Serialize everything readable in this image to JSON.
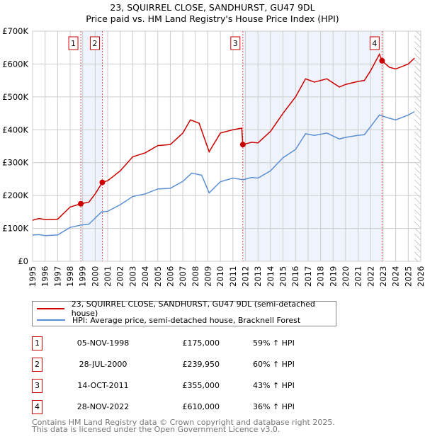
{
  "chart_data": {
    "type": "line",
    "title": "23, SQUIRREL CLOSE, SANDHURST, GU47 9DL",
    "subtitle": "Price paid vs. HM Land Registry's House Price Index (HPI)",
    "xlim": [
      1995,
      2026
    ],
    "ylim": [
      0,
      700000
    ],
    "x_ticks": [
      "1995",
      "1996",
      "1997",
      "1998",
      "1999",
      "2000",
      "2001",
      "2002",
      "2003",
      "2004",
      "2005",
      "2006",
      "2007",
      "2008",
      "2009",
      "2010",
      "2011",
      "2012",
      "2013",
      "2014",
      "2015",
      "2016",
      "2017",
      "2018",
      "2019",
      "2020",
      "2021",
      "2022",
      "2023",
      "2024",
      "2025",
      "2026"
    ],
    "y_ticks": [
      {
        "v": 0,
        "label": "£0"
      },
      {
        "v": 100000,
        "label": "£100K"
      },
      {
        "v": 200000,
        "label": "£200K"
      },
      {
        "v": 300000,
        "label": "£300K"
      },
      {
        "v": 400000,
        "label": "£400K"
      },
      {
        "v": 500000,
        "label": "£500K"
      },
      {
        "v": 600000,
        "label": "£600K"
      },
      {
        "v": 700000,
        "label": "£700K"
      }
    ],
    "grid": true,
    "data_end": 2025.5,
    "series": [
      {
        "name": "23, SQUIRREL CLOSE, SANDHURST, GU47 9DL (semi-detached house)",
        "color": "#cc0000",
        "x": [
          1995,
          1995.5,
          1996,
          1997,
          1998,
          1998.85,
          1999.5,
          2000,
          2000.57,
          2001,
          2002,
          2003,
          2004,
          2005,
          2006,
          2007,
          2007.6,
          2008.3,
          2009.1,
          2010,
          2011,
          2011.7,
          2011.79,
          2012.5,
          2013,
          2014,
          2015,
          2016,
          2016.8,
          2017.5,
          2018.5,
          2019.5,
          2020,
          2021,
          2021.5,
          2022,
          2022.7,
          2022.9,
          2023.5,
          2024,
          2025,
          2025.5
        ],
        "y": [
          125000,
          130000,
          127000,
          128000,
          165000,
          175000,
          180000,
          205000,
          240000,
          245000,
          275000,
          318000,
          330000,
          352000,
          355000,
          390000,
          430000,
          420000,
          333000,
          390000,
          400000,
          405000,
          355000,
          362000,
          360000,
          395000,
          450000,
          500000,
          555000,
          545000,
          555000,
          530000,
          538000,
          547000,
          550000,
          580000,
          630000,
          610000,
          590000,
          585000,
          600000,
          618000
        ]
      },
      {
        "name": "HPI: Average price, semi-detached house, Bracknell Forest",
        "color": "#5b8fd4",
        "x": [
          1995,
          1995.5,
          1996,
          1997,
          1998,
          1998.85,
          1999.5,
          2000.5,
          2001,
          2002,
          2003,
          2004,
          2005,
          2006,
          2007,
          2007.7,
          2008.5,
          2009.1,
          2010,
          2011,
          2011.8,
          2012.5,
          2013,
          2014,
          2015,
          2016,
          2016.8,
          2017.5,
          2018.5,
          2019.5,
          2020,
          2021,
          2021.5,
          2022,
          2022.7,
          2023.5,
          2024,
          2025,
          2025.5
        ],
        "y": [
          80000,
          81000,
          78000,
          80000,
          103000,
          110000,
          113000,
          150000,
          152000,
          172000,
          197000,
          205000,
          220000,
          222000,
          243000,
          268000,
          262000,
          208000,
          242000,
          253000,
          248000,
          255000,
          253000,
          275000,
          315000,
          340000,
          388000,
          383000,
          390000,
          372000,
          377000,
          383000,
          385000,
          410000,
          445000,
          435000,
          430000,
          445000,
          455000
        ]
      }
    ],
    "sales": [
      {
        "label": "1",
        "x": 1998.85,
        "price": 175000,
        "date": "05-NOV-1998",
        "price_text": "£175,000",
        "hpi_text": "59% ↑ HPI"
      },
      {
        "label": "2",
        "x": 2000.57,
        "price": 239950,
        "date": "28-JUL-2000",
        "price_text": "£239,950",
        "hpi_text": "60% ↑ HPI"
      },
      {
        "label": "3",
        "x": 2011.79,
        "price": 355000,
        "date": "14-OCT-2011",
        "price_text": "£355,000",
        "hpi_text": "43% ↑ HPI"
      },
      {
        "label": "4",
        "x": 2022.91,
        "price": 610000,
        "date": "28-NOV-2022",
        "price_text": "£610,000",
        "hpi_text": "36% ↑ HPI"
      }
    ]
  },
  "footer": {
    "line1": "Contains HM Land Registry data © Crown copyright and database right 2025.",
    "line2": "This data is licensed under the Open Government Licence v3.0."
  }
}
